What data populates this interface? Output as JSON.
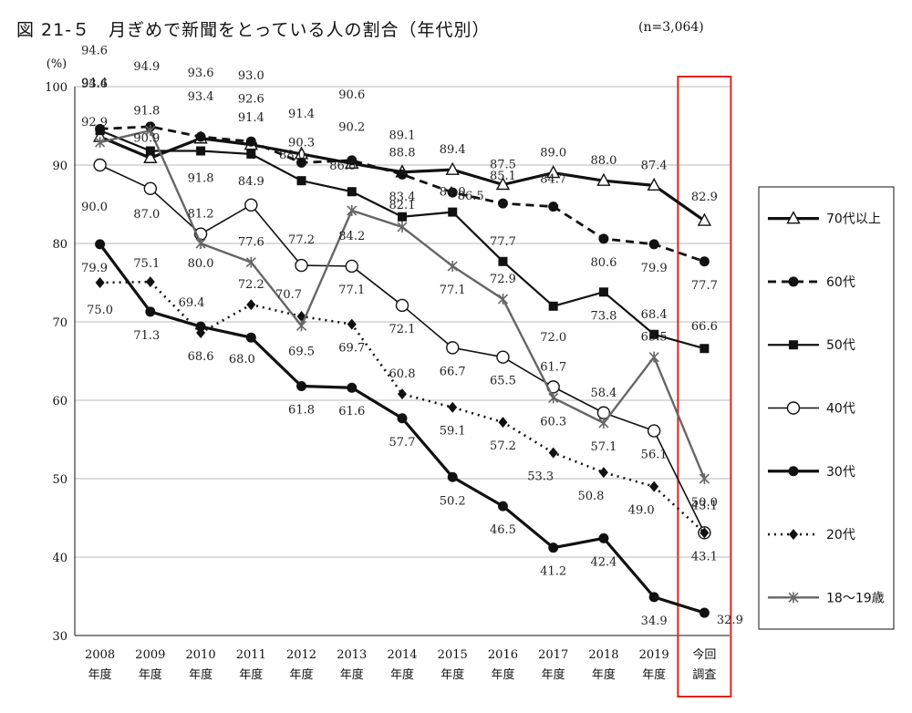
{
  "title": "図 21-５　月ぎめで新聞をとっている人の割合（年代別）",
  "sample_note": "(n=3,064)",
  "chart_data": {
    "type": "line",
    "title": "図 21-５　月ぎめで新聞をとっている人の割合（年代別）",
    "ylabel": "(%)",
    "ylim": [
      30,
      100
    ],
    "yticks": [
      "30",
      "40",
      "50",
      "60",
      "70",
      "80",
      "90",
      "100"
    ],
    "categories": [
      [
        "2008",
        "年度"
      ],
      [
        "2009",
        "年度"
      ],
      [
        "2010",
        "年度"
      ],
      [
        "2011",
        "年度"
      ],
      [
        "2012",
        "年度"
      ],
      [
        "2013",
        "年度"
      ],
      [
        "2014",
        "年度"
      ],
      [
        "2015",
        "年度"
      ],
      [
        "2016",
        "年度"
      ],
      [
        "2017",
        "年度"
      ],
      [
        "2018",
        "年度"
      ],
      [
        "2019",
        "年度"
      ],
      [
        "今回",
        "調査"
      ]
    ],
    "highlight_category": 12,
    "highlight_color": "#e0231b",
    "grid": true,
    "legend_position": "right",
    "series": [
      {
        "name": "70代以上",
        "style": "thick-solid",
        "marker": "triangle-open",
        "color": "#111111",
        "values": [
          93.6,
          90.9,
          93.4,
          92.6,
          91.4,
          90.2,
          89.1,
          89.4,
          87.5,
          89.0,
          88.0,
          87.4,
          82.9
        ],
        "labels": [
          "93.6",
          "90.9",
          "93.4",
          "92.6",
          "91.4",
          "90.2",
          "89.1",
          "89.4",
          "87.5",
          "89.0",
          "88.0",
          "87.4",
          "82.9"
        ]
      },
      {
        "name": "60代",
        "style": "dashed",
        "marker": "circle-filled",
        "color": "#111111",
        "values": [
          94.6,
          94.9,
          93.6,
          93.0,
          90.3,
          90.6,
          88.8,
          86.5,
          85.1,
          84.7,
          80.6,
          79.9,
          77.7
        ],
        "labels": [
          "94.6",
          "94.9",
          "93.6",
          "93.0",
          "90.3",
          "90.6",
          "88.8",
          "86.5",
          "85.1",
          "84.7",
          "80.6",
          "79.9",
          "77.7"
        ]
      },
      {
        "name": "50代",
        "style": "solid",
        "marker": "square-filled",
        "color": "#111111",
        "values": [
          94.4,
          91.8,
          91.8,
          91.4,
          88.0,
          86.6,
          83.4,
          84.0,
          77.7,
          72.0,
          73.8,
          68.4,
          66.6
        ],
        "labels": [
          "94.4",
          "91.8",
          "91.8",
          "91.4",
          "88.0",
          "86.6",
          "83.4",
          "84.0",
          "77.7",
          "72.0",
          "73.8",
          "68.4",
          "66.6"
        ]
      },
      {
        "name": "40代",
        "style": "thin-solid",
        "marker": "circle-open",
        "color": "#111111",
        "values": [
          90.0,
          87.0,
          81.2,
          84.9,
          77.2,
          77.1,
          72.1,
          66.7,
          65.5,
          61.7,
          58.4,
          56.1,
          43.1
        ],
        "labels": [
          "90.0",
          "87.0",
          "81.2",
          "84.9",
          "77.2",
          "77.1",
          "72.1",
          "66.7",
          "65.5",
          "61.7",
          "58.4",
          "56.1",
          "43.1"
        ]
      },
      {
        "name": "30代",
        "style": "thick-solid",
        "marker": "circle-filled",
        "color": "#111111",
        "values": [
          79.9,
          71.3,
          69.4,
          68.0,
          61.8,
          61.6,
          57.7,
          50.2,
          46.5,
          41.2,
          42.4,
          34.9,
          32.9
        ],
        "labels": [
          "79.9",
          "71.3",
          "69.4",
          "68.0",
          "61.8",
          "61.6",
          "57.7",
          "50.2",
          "46.5",
          "41.2",
          "42.4",
          "34.9",
          "32.9"
        ]
      },
      {
        "name": "20代",
        "style": "dotted",
        "marker": "diamond-filled",
        "color": "#111111",
        "values": [
          75.0,
          75.1,
          68.6,
          72.2,
          70.7,
          69.7,
          60.8,
          59.1,
          57.2,
          53.3,
          50.8,
          49.0,
          43.1
        ],
        "labels": [
          "75.0",
          "75.1",
          "68.6",
          "72.2",
          "70.7",
          "69.7",
          "60.8",
          "59.1",
          "57.2",
          "53.3",
          "50.8",
          "49.0",
          "43.1"
        ]
      },
      {
        "name": "18～19歳",
        "style": "gray-solid",
        "marker": "star",
        "color": "#666666",
        "values": [
          92.9,
          94.4,
          80.0,
          77.6,
          69.5,
          84.2,
          82.1,
          77.1,
          72.9,
          60.3,
          57.1,
          65.5,
          50.0
        ],
        "labels": [
          "92.9",
          "",
          "80.0",
          "77.6",
          "69.5",
          "84.2",
          "82.1",
          "77.1",
          "72.9",
          "60.3",
          "57.1",
          "65.5",
          "50.0"
        ]
      }
    ]
  }
}
